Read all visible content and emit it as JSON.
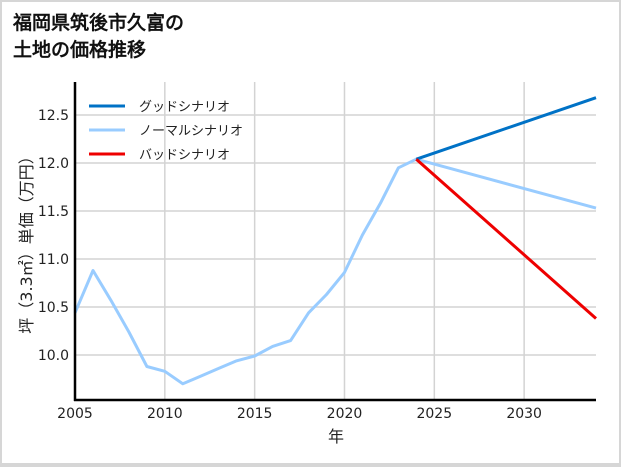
{
  "title_lines": [
    "福岡県筑後市久富の",
    "土地の価格推移"
  ],
  "chart_data": {
    "type": "line",
    "title": "福岡県筑後市久富の土地の価格推移",
    "xlabel": "年",
    "ylabel": "坪（3.3㎡）単価（万円）",
    "xlim": [
      2005,
      2034
    ],
    "ylim": [
      9.54,
      12.83
    ],
    "xticks": [
      2005,
      2010,
      2015,
      2020,
      2025,
      2030
    ],
    "yticks": [
      10.0,
      10.5,
      11.0,
      11.5,
      12.0,
      12.5
    ],
    "ytick_labels": [
      "10.0",
      "10.5",
      "11.0",
      "11.5",
      "12.0",
      "12.5"
    ],
    "grid": true,
    "legend_position": "upper left",
    "series": [
      {
        "name": "グッドシナリオ",
        "color": "#0072c6",
        "x": [
          2024,
          2034
        ],
        "values": [
          12.04,
          12.68
        ]
      },
      {
        "name": "ノーマルシナリオ",
        "color": "#99ccff",
        "x": [
          2005,
          2006,
          2007,
          2008,
          2009,
          2010,
          2011,
          2012,
          2013,
          2014,
          2015,
          2016,
          2017,
          2018,
          2019,
          2020,
          2021,
          2022,
          2023,
          2024,
          2034
        ],
        "values": [
          10.44,
          10.88,
          10.57,
          10.24,
          9.88,
          9.83,
          9.7,
          9.78,
          9.86,
          9.94,
          9.99,
          10.09,
          10.15,
          10.44,
          10.63,
          10.86,
          11.25,
          11.58,
          11.95,
          12.04,
          11.53
        ]
      },
      {
        "name": "バッドシナリオ",
        "color": "#ee0000",
        "x": [
          2024,
          2034
        ],
        "values": [
          12.04,
          10.38
        ]
      }
    ]
  }
}
